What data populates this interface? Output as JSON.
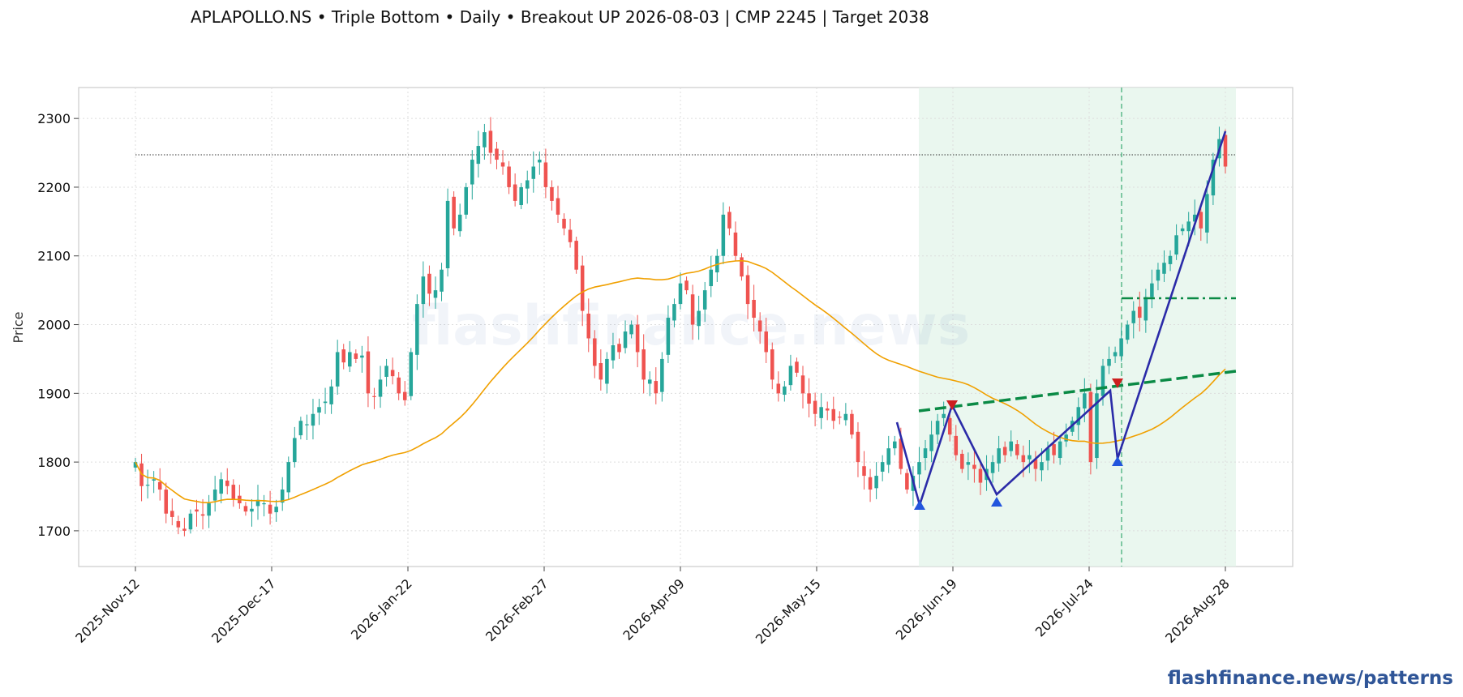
{
  "title": "APLAPOLLO.NS  •  Triple Bottom  •  Daily  •  Breakout UP 2026-08-03  |  CMP 2245  |  Target 2038",
  "watermark": "flashfinance.news",
  "source_label": "flashfinance.news/patterns",
  "colors": {
    "up": "#26a69a",
    "down": "#ef5350",
    "ma": "#f0a000",
    "zigzag": "#2b2ba8",
    "neckline": "#0a8a45",
    "target": "#0a8a45",
    "zone": "#e3f4ea",
    "peak_marker": "#cc1f1f",
    "trough_marker": "#2255dd",
    "cmp_line": "#333333"
  },
  "chart_data": {
    "type": "candlestick",
    "ylabel": "Price",
    "ylim": [
      1648,
      2345
    ],
    "yticks": [
      1700,
      1800,
      1900,
      2000,
      2100,
      2200,
      2300
    ],
    "xticks": [
      "2025-Nov-12",
      "2025-Dec-17",
      "2026-Jan-22",
      "2026-Feb-27",
      "2026-Apr-09",
      "2026-May-15",
      "2026-Jun-19",
      "2026-Jul-24",
      "2026-Aug-28"
    ],
    "grid": true,
    "cmp": 2245,
    "target": 2038,
    "pattern": "Triple Bottom",
    "breakout_date": "2026-08-03",
    "close": [
      1800,
      1765,
      1767,
      1775,
      1760,
      1725,
      1720,
      1705,
      1700,
      1725,
      1728,
      1722,
      1740,
      1760,
      1775,
      1765,
      1745,
      1740,
      1728,
      1732,
      1745,
      1740,
      1725,
      1735,
      1760,
      1800,
      1835,
      1860,
      1855,
      1870,
      1880,
      1888,
      1910,
      1960,
      1945,
      1960,
      1950,
      1955,
      1900,
      1895,
      1920,
      1940,
      1925,
      1900,
      1890,
      1960,
      2030,
      2070,
      2045,
      2050,
      2080,
      2180,
      2140,
      2160,
      2200,
      2240,
      2260,
      2280,
      2250,
      2240,
      2230,
      2200,
      2180,
      2200,
      2210,
      2230,
      2240,
      2200,
      2180,
      2160,
      2140,
      2120,
      2080,
      2020,
      1980,
      1940,
      1920,
      1950,
      1970,
      1960,
      1990,
      2000,
      1960,
      1920,
      1920,
      1900,
      1950,
      2010,
      2030,
      2060,
      2050,
      2000,
      2020,
      2050,
      2080,
      2100,
      2160,
      2140,
      2100,
      2070,
      2030,
      2010,
      1990,
      1960,
      1920,
      1900,
      1910,
      1940,
      1930,
      1900,
      1885,
      1870,
      1880,
      1875,
      1860,
      1865,
      1870,
      1840,
      1800,
      1780,
      1760,
      1780,
      1800,
      1820,
      1830,
      1790,
      1760,
      1780,
      1800,
      1820,
      1840,
      1860,
      1870,
      1840,
      1810,
      1790,
      1800,
      1790,
      1770,
      1790,
      1800,
      1820,
      1810,
      1830,
      1810,
      1800,
      1810,
      1790,
      1800,
      1820,
      1810,
      1830,
      1840,
      1860,
      1880,
      1900,
      1800,
      1900,
      1940,
      1950,
      1960,
      1980,
      2000,
      2020,
      2010,
      2040,
      2060,
      2080,
      2090,
      2100,
      2130,
      2140,
      2150,
      2160,
      2140,
      2190,
      2240,
      2270,
      2230
    ]
  }
}
